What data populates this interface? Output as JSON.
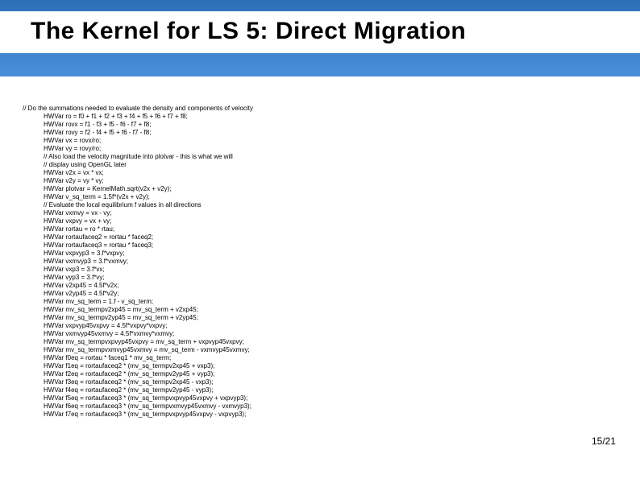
{
  "title": "The Kernel for LS 5: Direct Migration",
  "page_number": "15/21",
  "code": {
    "l0": "// Do the summations needed to evaluate the density and components of velocity",
    "l1": "HWVar ro = f0 + f1 + f2 + f3 + f4 + f5 + f6 + f7 + f8;",
    "l2": "HWVar rovx = f1 - f3 + f5 - f6 - f7 + f8;",
    "l3": "HWVar rovy = f2 - f4 + f5 + f6 - f7 - f8;",
    "l4": "HWVar vx = rovx/ro;",
    "l5": "HWVar vy = rovy/ro;",
    "l6": "// Also load the velocity magnitude into plotvar - this is what we will",
    "l7": "// display using OpenGL later",
    "l8": "HWVar v2x = vx * vx;",
    "l9": "HWVar v2y = vy * vy;",
    "l10": "HWVar plotvar = KernelMath.sqrt(v2x + v2y);",
    "l11": "HWVar v_sq_term = 1.5f*(v2x + v2y);",
    "l12": "// Evaluate the local equilibrium f values in all directions",
    "l13": "HWVar vxmvy = vx - vy;",
    "l14": "HWVar vxpvy = vx + vy;",
    "l15": "HWVar rortau = ro * rtau;",
    "l16": "HWVar rortaufaceq2 = rortau * faceq2;",
    "l17": "HWVar rortaufaceq3 = rortau * faceq3;",
    "l18": "HWVar vxpvyp3 = 3.f*vxpvy;",
    "l19": "HWVar vxmvyp3 = 3.f*vxmvy;",
    "l20": "HWVar vxp3 = 3.f*vx;",
    "l21": "HWVar vyp3 = 3.f*vy;",
    "l22": "HWVar v2xp45 = 4.5f*v2x;",
    "l23": "HWVar v2yp45 = 4.5f*v2y;",
    "l24": "HWVar mv_sq_term = 1.f - v_sq_term;",
    "l25": "HWVar mv_sq_termpv2xp45 = mv_sq_term + v2xp45;",
    "l26": "HWVar mv_sq_termpv2yp45 = mv_sq_term + v2yp45;",
    "l27": "HWVar vxpvyp45vxpvy = 4.5f*vxpvy*vxpvy;",
    "l28": "HWVar vxmvyp45vxmvy = 4.5f*vxmvy*vxmvy;",
    "l29": "HWVar mv_sq_termpvxpvyp45vxpvy = mv_sq_term + vxpvyp45vxpvy;",
    "l30": "HWVar mv_sq_termpvxmvyp45vxmvy = mv_sq_term - vxmvyp45vxmvy;",
    "l31": "HWVar f0eq = rortau * faceq1 * mv_sq_term;",
    "l32": "HWVar f1eq = rortaufaceq2 * (mv_sq_termpv2xp45 + vxp3);",
    "l33": "HWVar f2eq = rortaufaceq2 * (mv_sq_termpv2yp45 + vyp3);",
    "l34": "HWVar f3eq = rortaufaceq2 * (mv_sq_termpv2xp45 - vxp3);",
    "l35": "HWVar f4eq = rortaufaceq2 * (mv_sq_termpv2yp45 - vyp3);",
    "l36": "HWVar f5eq = rortaufaceq3 * (mv_sq_termpvxpvyp45vxpvy + vxpvyp3);",
    "l37": "HWVar f6eq = rortaufaceq3 * (mv_sq_termpvxmvyp45vxmvy - vxmvyp3);",
    "l38": "HWVar f7eq = rortaufaceq3 * (mv_sq_termpvxpvyp45vxpvy - vxpvyp3);"
  }
}
